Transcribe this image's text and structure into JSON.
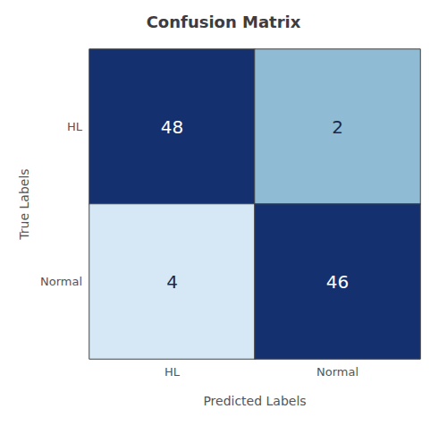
{
  "chart_data": {
    "type": "heatmap",
    "title": "Confusion Matrix",
    "xlabel": "Predicted Labels",
    "ylabel": "True Labels",
    "x_categories": [
      "HL",
      "Normal"
    ],
    "y_categories": [
      "HL",
      "Normal"
    ],
    "values": [
      [
        48,
        2
      ],
      [
        4,
        46
      ]
    ],
    "colors": [
      [
        "#14306e",
        "#8fbcd4"
      ],
      [
        "#d6e8f5",
        "#14306e"
      ]
    ],
    "data_labels": true,
    "grid": false
  }
}
